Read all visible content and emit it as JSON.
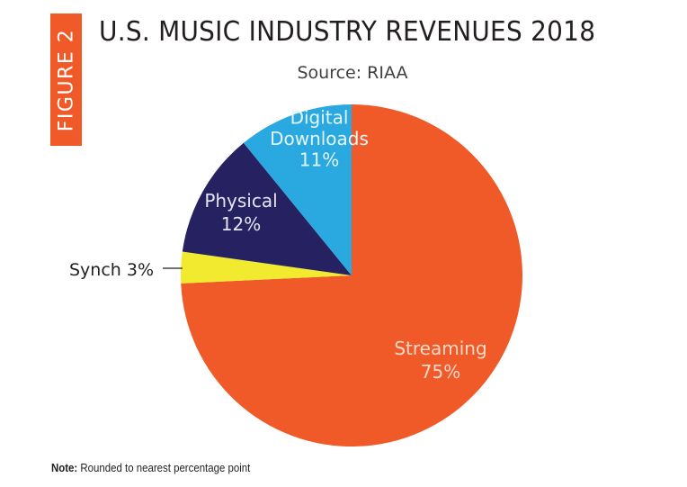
{
  "figure_label": "FIGURE 2",
  "chart_data": {
    "type": "pie",
    "title": "U.S. MUSIC INDUSTRY REVENUES 2018",
    "subtitle": "Source: RIAA",
    "unit": "percent",
    "slices": [
      {
        "name": "Streaming",
        "value": 75,
        "label_lines": [
          "Streaming",
          "75%"
        ],
        "color": "#F05A28",
        "text_color": "#FCD9C8"
      },
      {
        "name": "Synch",
        "value": 3,
        "label_lines": [
          "Synch 3%"
        ],
        "color": "#F2EA2E",
        "text_color": "#231f20",
        "label_position": "outside-left"
      },
      {
        "name": "Physical",
        "value": 12,
        "label_lines": [
          "Physical",
          "12%"
        ],
        "color": "#262262",
        "text_color": "#E6E4F2"
      },
      {
        "name": "Digital Downloads",
        "value": 11,
        "label_lines": [
          "Digital",
          "Downloads",
          "11%"
        ],
        "color": "#29A9E0",
        "text_color": "#E4F5FC"
      }
    ],
    "start": "12 o'clock",
    "direction": "clockwise",
    "legend": "none"
  },
  "note": {
    "label": "Note:",
    "text": " Rounded to nearest percentage point"
  }
}
